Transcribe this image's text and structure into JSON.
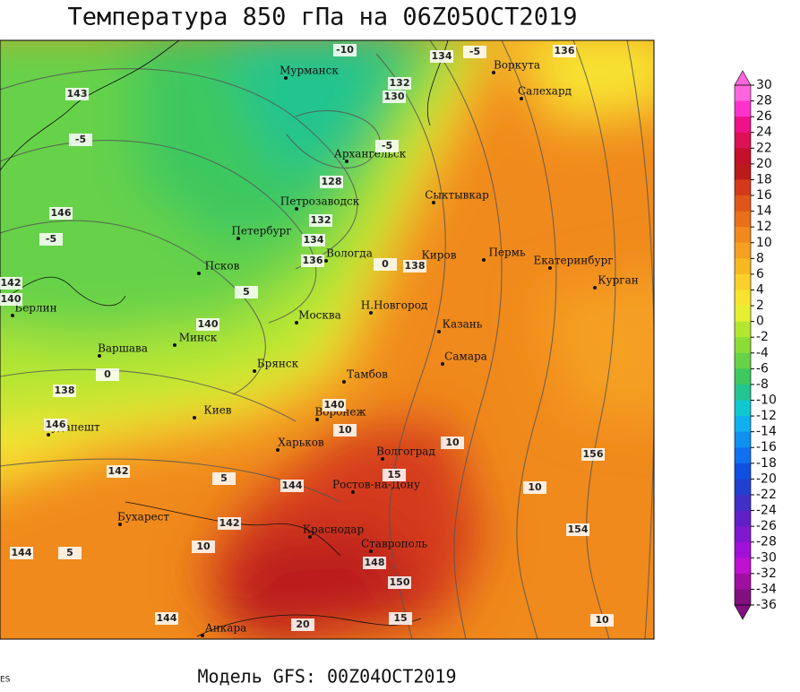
{
  "title": "Температура 850 гПа на 06Z05OCT2019",
  "footer": "Модель GFS: 00Z04OCT2019",
  "corner_label": "ES",
  "colorbar": {
    "ticks": [
      30,
      28,
      26,
      24,
      22,
      20,
      18,
      16,
      14,
      12,
      10,
      8,
      6,
      4,
      2,
      0,
      -2,
      -4,
      -6,
      -8,
      -10,
      -12,
      -14,
      -16,
      -18,
      -20,
      -22,
      -24,
      -26,
      -28,
      -30,
      -32,
      -34,
      -36
    ],
    "colors": [
      "#ff66dd",
      "#ff33cc",
      "#ee1188",
      "#dd1155",
      "#c4102a",
      "#bb1a1a",
      "#d43a1a",
      "#e0561a",
      "#ea6f1a",
      "#f08a1c",
      "#f5a020",
      "#f8b822",
      "#fad02a",
      "#f8e430",
      "#e4ef30",
      "#b4e630",
      "#8cdc38",
      "#66d248",
      "#3ec85e",
      "#22c490",
      "#10c8d0",
      "#10b0f0",
      "#1090f0",
      "#1070f0",
      "#1050e0",
      "#2040d0",
      "#4030c8",
      "#6020c8",
      "#8018d0",
      "#a010d8",
      "#c010d0",
      "#a010a0",
      "#801080"
    ]
  },
  "cities": [
    "Мурманск",
    "Воркута",
    "Салехард",
    "Архангельск",
    "Сыктывкар",
    "Петрозаводск",
    "Петербург",
    "Вологда",
    "Киров",
    "Пермь",
    "Екатеринбург",
    "Курган",
    "Псков",
    "Берлин",
    "Москва",
    "Н.Новгород",
    "Казань",
    "Минск",
    "Варшава",
    "Самара",
    "Брянск",
    "Тамбов",
    "Киев",
    "Воронеж",
    "Будапешт",
    "Харьков",
    "Волгоград",
    "Ростов-на-Дону",
    "Бухарест",
    "Краснодар",
    "Ставрополь",
    "Анкара"
  ],
  "contour_labels": [
    -10,
    134,
    -5,
    136,
    132,
    130,
    143,
    -5,
    -5,
    128,
    146,
    132,
    134,
    136,
    138,
    -5,
    142,
    140,
    5,
    0,
    140,
    0,
    138,
    140,
    146,
    10,
    142,
    10,
    15,
    5,
    144,
    156,
    10,
    142,
    10,
    154,
    144,
    5,
    148,
    150,
    144,
    20,
    15,
    10
  ]
}
